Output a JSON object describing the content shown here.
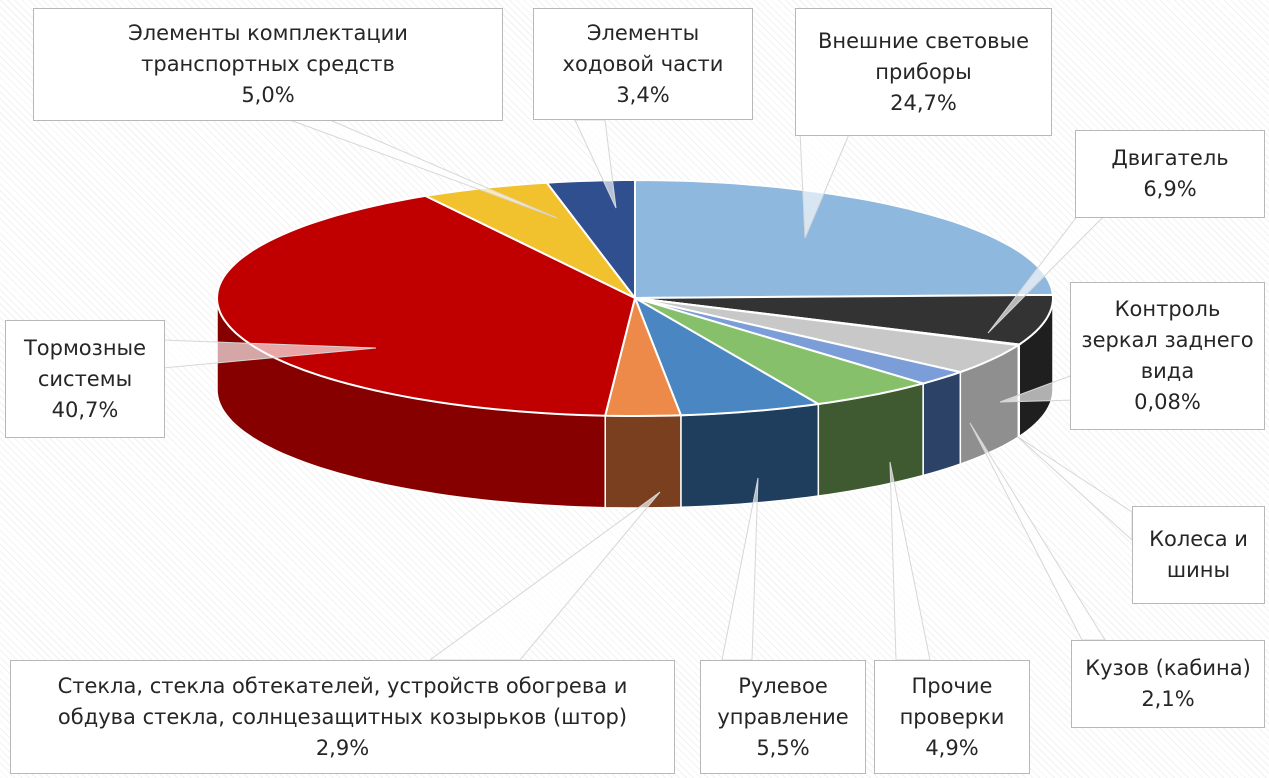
{
  "chart_data": {
    "type": "pie",
    "title": "",
    "slices": [
      {
        "label_lines": [
          "Внешние световые",
          "приборы"
        ],
        "value": 24.7,
        "display": "24,7%",
        "color": "#8fb8df",
        "side_color": "#5d83a8"
      },
      {
        "label_lines": [
          "Двигатель"
        ],
        "value": 6.9,
        "display": "6,9%",
        "color": "#333333",
        "side_color": "#1f1f1f"
      },
      {
        "label_lines": [
          "Контроль",
          "зеркал заднего",
          "вида"
        ],
        "value": 0.08,
        "display": "0,08%",
        "color": "#c4c4c4",
        "side_color": "#8a8a8a"
      },
      {
        "label_lines": [
          "Колеса и",
          "шины"
        ],
        "value": 4.3,
        "display": "",
        "color": "#c8c8c8",
        "side_color": "#8f8f8f"
      },
      {
        "label_lines": [
          "Кузов (кабина)"
        ],
        "value": 2.1,
        "display": "2,1%",
        "color": "#7b9ed9",
        "side_color": "#2c4266"
      },
      {
        "label_lines": [
          "Прочие",
          "проверки"
        ],
        "value": 4.9,
        "display": "4,9%",
        "color": "#86c06b",
        "side_color": "#3f5a30"
      },
      {
        "label_lines": [
          "Рулевое",
          "управление"
        ],
        "value": 5.5,
        "display": "5,5%",
        "color": "#4a86c2",
        "side_color": "#1f3d5c"
      },
      {
        "label_lines": [
          "Стекла, стекла обтекателей, устройств обогрева и",
          "обдува стекла, солнцезащитных козырьков (штор)"
        ],
        "value": 2.9,
        "display": "2,9%",
        "color": "#ed8a4a",
        "side_color": "#7a3f1e"
      },
      {
        "label_lines": [
          "Тормозные",
          "системы"
        ],
        "value": 40.7,
        "display": "40,7%",
        "color": "#c00000",
        "side_color": "#870000"
      },
      {
        "label_lines": [
          "Элементы комплектации",
          "транспортных средств"
        ],
        "value": 5.0,
        "display": "5,0%",
        "color": "#f2c12e",
        "side_color": "#9a7a1a"
      },
      {
        "label_lines": [
          "Элементы",
          "ходовой части"
        ],
        "value": 3.4,
        "display": "3,4%",
        "color": "#2f4f8f",
        "side_color": "#1c2f55"
      }
    ]
  }
}
